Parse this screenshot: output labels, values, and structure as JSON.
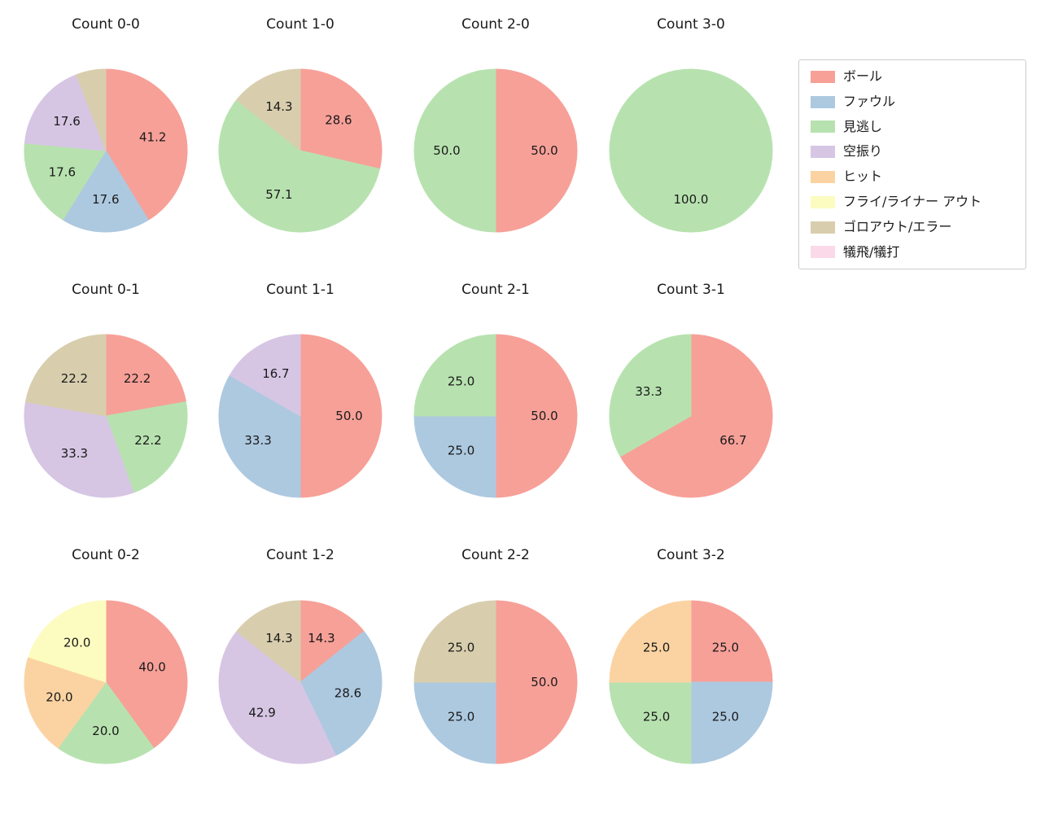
{
  "figure": {
    "background": "#ffffff"
  },
  "legend": {
    "items": [
      {
        "label": "ボール",
        "color": "#F7A098"
      },
      {
        "label": "ファウル",
        "color": "#ADC9E0"
      },
      {
        "label": "見逃し",
        "color": "#B7E2AF"
      },
      {
        "label": "空振り",
        "color": "#D6C6E4"
      },
      {
        "label": "ヒット",
        "color": "#FBD3A2"
      },
      {
        "label": "フライ/ライナー アウト",
        "color": "#FCFCC0"
      },
      {
        "label": "ゴロアウト/エラー",
        "color": "#D8CEAE"
      },
      {
        "label": "犠飛/犠打",
        "color": "#FBD9E8"
      }
    ]
  },
  "chart_meta": {
    "rows": 3,
    "cols": 4,
    "start_angle": "top",
    "direction": "clockwise",
    "legend_position": "upper right",
    "value_format": "percent_one_decimal"
  },
  "chart_data": [
    {
      "type": "pie",
      "title": "Count 0-0",
      "slices": [
        {
          "category": "ボール",
          "value": 41.2
        },
        {
          "category": "ファウル",
          "value": 17.6
        },
        {
          "category": "見逃し",
          "value": 17.6
        },
        {
          "category": "空振り",
          "value": 17.6
        },
        {
          "category": "ゴロアウト/エラー",
          "value": 5.9,
          "label_visible": false
        }
      ]
    },
    {
      "type": "pie",
      "title": "Count 1-0",
      "slices": [
        {
          "category": "ボール",
          "value": 28.6
        },
        {
          "category": "見逃し",
          "value": 57.1
        },
        {
          "category": "ゴロアウト/エラー",
          "value": 14.3
        }
      ]
    },
    {
      "type": "pie",
      "title": "Count 2-0",
      "slices": [
        {
          "category": "ボール",
          "value": 50.0
        },
        {
          "category": "見逃し",
          "value": 50.0
        }
      ]
    },
    {
      "type": "pie",
      "title": "Count 3-0",
      "slices": [
        {
          "category": "見逃し",
          "value": 100.0
        }
      ]
    },
    {
      "type": "pie",
      "title": "Count 0-1",
      "slices": [
        {
          "category": "ボール",
          "value": 22.2
        },
        {
          "category": "見逃し",
          "value": 22.2
        },
        {
          "category": "空振り",
          "value": 33.3
        },
        {
          "category": "ゴロアウト/エラー",
          "value": 22.2
        }
      ]
    },
    {
      "type": "pie",
      "title": "Count 1-1",
      "slices": [
        {
          "category": "ボール",
          "value": 50.0
        },
        {
          "category": "ファウル",
          "value": 33.3
        },
        {
          "category": "空振り",
          "value": 16.7
        }
      ]
    },
    {
      "type": "pie",
      "title": "Count 2-1",
      "slices": [
        {
          "category": "ボール",
          "value": 50.0
        },
        {
          "category": "ファウル",
          "value": 25.0
        },
        {
          "category": "見逃し",
          "value": 25.0
        }
      ]
    },
    {
      "type": "pie",
      "title": "Count 3-1",
      "slices": [
        {
          "category": "ボール",
          "value": 66.7
        },
        {
          "category": "見逃し",
          "value": 33.3
        }
      ]
    },
    {
      "type": "pie",
      "title": "Count 0-2",
      "slices": [
        {
          "category": "ボール",
          "value": 40.0
        },
        {
          "category": "見逃し",
          "value": 20.0
        },
        {
          "category": "ヒット",
          "value": 20.0
        },
        {
          "category": "フライ/ライナー アウト",
          "value": 20.0
        }
      ]
    },
    {
      "type": "pie",
      "title": "Count 1-2",
      "slices": [
        {
          "category": "ボール",
          "value": 14.3
        },
        {
          "category": "ファウル",
          "value": 28.6
        },
        {
          "category": "空振り",
          "value": 42.9
        },
        {
          "category": "ゴロアウト/エラー",
          "value": 14.3
        }
      ]
    },
    {
      "type": "pie",
      "title": "Count 2-2",
      "slices": [
        {
          "category": "ボール",
          "value": 50.0
        },
        {
          "category": "ファウル",
          "value": 25.0
        },
        {
          "category": "ゴロアウト/エラー",
          "value": 25.0
        }
      ]
    },
    {
      "type": "pie",
      "title": "Count 3-2",
      "slices": [
        {
          "category": "ボール",
          "value": 25.0
        },
        {
          "category": "ファウル",
          "value": 25.0
        },
        {
          "category": "見逃し",
          "value": 25.0
        },
        {
          "category": "ヒット",
          "value": 25.0
        }
      ]
    }
  ]
}
